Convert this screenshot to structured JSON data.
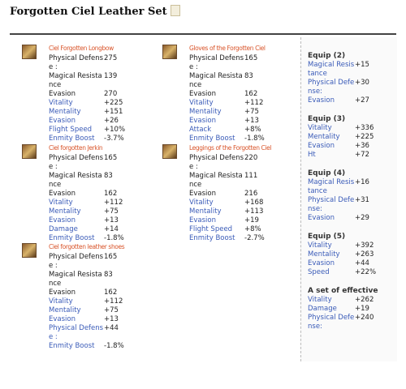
{
  "title": "Forgotten Ciel Leather Set",
  "items": [
    {
      "name": "Ciel Forgotten Longbow",
      "base": [
        {
          "label": "Physical Defense :",
          "value": 275
        },
        {
          "label": "Magical Resistance",
          "value": 139
        },
        {
          "label": "Evasion",
          "value": 270
        }
      ],
      "bonus": [
        {
          "label": "Vitality",
          "value": "+225"
        },
        {
          "label": "Mentality",
          "value": "+151"
        },
        {
          "label": "Evasion",
          "value": "+26"
        },
        {
          "label": "Flight Speed",
          "value": "+10%"
        },
        {
          "label": "Enmity Boost",
          "value": "-3.7%"
        }
      ]
    },
    {
      "name": "Gloves of the Forgotten Ciel",
      "base": [
        {
          "label": "Physical Defense :",
          "value": 165
        },
        {
          "label": "Magical Resistance",
          "value": 83
        },
        {
          "label": "Evasion",
          "value": 162
        }
      ],
      "bonus": [
        {
          "label": "Vitality",
          "value": "+112"
        },
        {
          "label": "Mentality",
          "value": "+75"
        },
        {
          "label": "Evasion",
          "value": "+13"
        },
        {
          "label": "Attack",
          "value": "+8%"
        },
        {
          "label": "Enmity Boost",
          "value": "-1.8%"
        }
      ]
    },
    {
      "name": "Ciel forgotten Jerkin",
      "base": [
        {
          "label": "Physical Defense :",
          "value": 165
        },
        {
          "label": "Magical Resistance",
          "value": 83
        },
        {
          "label": "Evasion",
          "value": 162
        }
      ],
      "bonus": [
        {
          "label": "Vitality",
          "value": "+112"
        },
        {
          "label": "Mentality",
          "value": "+75"
        },
        {
          "label": "Evasion",
          "value": "+13"
        },
        {
          "label": "Damage",
          "value": "+14"
        },
        {
          "label": "Enmity Boost",
          "value": "-1.8%"
        }
      ]
    },
    {
      "name": "Leggings of the Forgotten Ciel",
      "base": [
        {
          "label": "Physical Defense :",
          "value": 220
        },
        {
          "label": "Magical Resistance",
          "value": 111
        },
        {
          "label": "Evasion",
          "value": 216
        }
      ],
      "bonus": [
        {
          "label": "Vitality",
          "value": "+168"
        },
        {
          "label": "Mentality",
          "value": "+113"
        },
        {
          "label": "Evasion",
          "value": "+19"
        },
        {
          "label": "Flight Speed",
          "value": "+8%"
        },
        {
          "label": "Enmity Boost",
          "value": "-2.7%"
        }
      ]
    },
    {
      "name": "Ciel forgotten leather shoes",
      "base": [
        {
          "label": "Physical Defense :",
          "value": 165
        },
        {
          "label": "Magical Resistance",
          "value": 83
        },
        {
          "label": "Evasion",
          "value": 162
        }
      ],
      "bonus": [
        {
          "label": "Vitality",
          "value": "+112"
        },
        {
          "label": "Mentality",
          "value": "+75"
        },
        {
          "label": "Evasion",
          "value": "+13"
        },
        {
          "label": "Physical Defense :",
          "value": "+44"
        },
        {
          "label": "Enmity Boost",
          "value": "-1.8%"
        }
      ]
    }
  ],
  "set_bonuses": [
    {
      "heading": "Equip (2)",
      "stats": [
        {
          "label": "Magical Resistance",
          "value": "+15"
        },
        {
          "label": "Physical Defense:",
          "value": "+30"
        },
        {
          "label": "Evasion",
          "value": "+27"
        }
      ]
    },
    {
      "heading": "Equip (3)",
      "stats": [
        {
          "label": "Vitality",
          "value": "+336"
        },
        {
          "label": "Mentality",
          "value": "+225"
        },
        {
          "label": "Evasion",
          "value": "+36"
        },
        {
          "label": "Ht",
          "value": "+72"
        }
      ]
    },
    {
      "heading": "Equip (4)",
      "stats": [
        {
          "label": "Magical Resistance",
          "value": "+16"
        },
        {
          "label": "Physical Defense:",
          "value": "+31"
        },
        {
          "label": "Evasion",
          "value": "+29"
        }
      ]
    },
    {
      "heading": "Equip (5)",
      "stats": [
        {
          "label": "Vitality",
          "value": "+392"
        },
        {
          "label": "Mentality",
          "value": "+263"
        },
        {
          "label": "Evasion",
          "value": "+44"
        },
        {
          "label": "Speed",
          "value": "+22%"
        }
      ]
    },
    {
      "heading": "A set of effective",
      "stats": [
        {
          "label": "Vitality",
          "value": "+262"
        },
        {
          "label": "Damage",
          "value": "+19"
        },
        {
          "label": "Physical Defense:",
          "value": "+240"
        }
      ]
    }
  ]
}
